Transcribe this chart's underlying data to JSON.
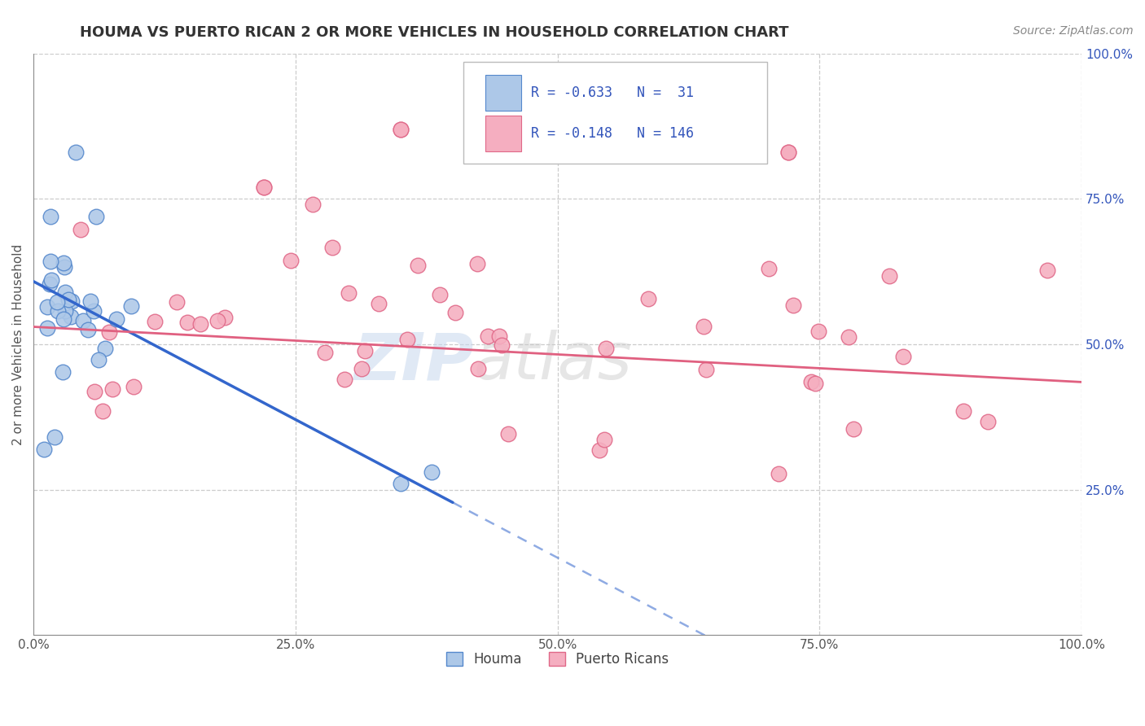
{
  "title": "HOUMA VS PUERTO RICAN 2 OR MORE VEHICLES IN HOUSEHOLD CORRELATION CHART",
  "source_text": "Source: ZipAtlas.com",
  "ylabel": "2 or more Vehicles in Household",
  "xlim": [
    0.0,
    1.0
  ],
  "ylim": [
    0.0,
    1.0
  ],
  "houma_color": "#adc8e8",
  "pr_color": "#f5aec0",
  "houma_edge": "#5588cc",
  "pr_edge": "#e06888",
  "line_houma_color": "#3366cc",
  "line_pr_color": "#e06080",
  "houma_R": -0.633,
  "houma_N": 31,
  "pr_R": -0.148,
  "pr_N": 146,
  "legend_text_color": "#3355bb",
  "background_color": "#ffffff",
  "grid_color": "#cccccc",
  "watermark_zip": "ZIP",
  "watermark_atlas": "atlas",
  "houma_intercept": 0.608,
  "houma_slope": -0.95,
  "pr_intercept": 0.53,
  "pr_slope": -0.095,
  "title_fontsize": 13,
  "source_fontsize": 10,
  "tick_fontsize": 11,
  "ylabel_fontsize": 11
}
